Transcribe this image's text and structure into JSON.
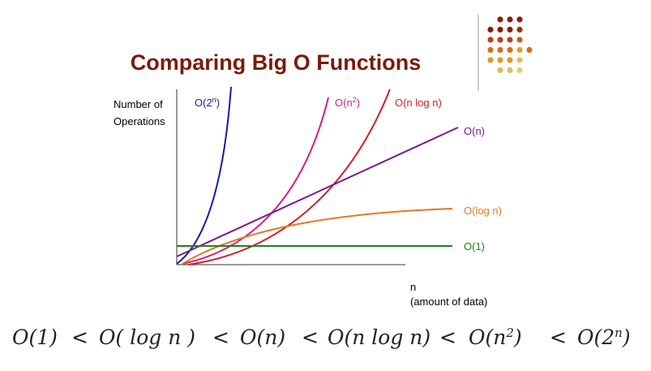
{
  "title": "Comparing Big O Functions",
  "y_axis_label": [
    "Number of",
    "Operations"
  ],
  "x_axis_label": [
    "n",
    "(amount of data)"
  ],
  "curves": [
    {
      "label": [
        "O(2",
        "n",
        ")"
      ]
    },
    {
      "label": [
        "O(n",
        "2",
        ")"
      ]
    },
    {
      "label": [
        "O(n log n)"
      ]
    },
    {
      "label": [
        "O(n)"
      ]
    },
    {
      "label": [
        "O(log n)"
      ]
    },
    {
      "label": [
        "O(1)"
      ]
    }
  ],
  "formula": [
    [
      "O(1)"
    ],
    [
      "<"
    ],
    [
      "O( log  n )"
    ],
    [
      "<"
    ],
    [
      "O(n)"
    ],
    [
      "<"
    ],
    [
      "O(n log  n)"
    ],
    [
      "<"
    ],
    [
      "O(n",
      "2",
      ")"
    ],
    [
      "<"
    ],
    [
      "O(2",
      "n",
      ")"
    ]
  ]
}
